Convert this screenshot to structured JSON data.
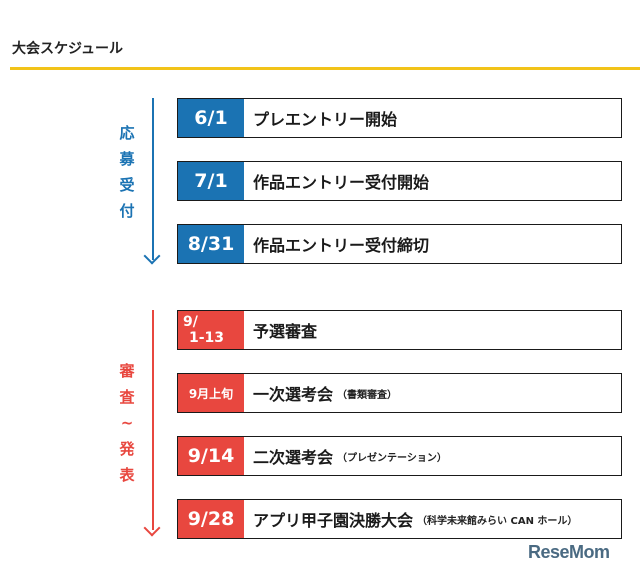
{
  "header": {
    "title": "大会スケジュール"
  },
  "phases": [
    {
      "label": [
        "応",
        "募",
        "受",
        "付"
      ]
    },
    {
      "label": [
        "審",
        "査",
        "~",
        "発",
        "表"
      ]
    }
  ],
  "schedule": [
    {
      "date": "6/1",
      "event": "プレエントリー開始",
      "note": ""
    },
    {
      "date": "7/1",
      "event": "作品エントリー受付開始",
      "note": ""
    },
    {
      "date": "8/31",
      "event": "作品エントリー受付締切",
      "note": ""
    },
    {
      "date_line1": "9/",
      "date_line2": "1-13",
      "event": "予選審査",
      "note": ""
    },
    {
      "date": "9月上旬",
      "event": "一次選考会",
      "note": "（書類審査）"
    },
    {
      "date": "9/14",
      "event": "二次選考会",
      "note": "（プレゼンテーション）"
    },
    {
      "date": "9/28",
      "event": "アプリ甲子園決勝大会",
      "note": "（科学未来館みらい CAN ホール）"
    }
  ],
  "watermark": {
    "text": "ReseMom"
  },
  "colors": {
    "accent_yellow": "#f2c318",
    "phase1": "#1b73b3",
    "phase2": "#e8473f"
  }
}
